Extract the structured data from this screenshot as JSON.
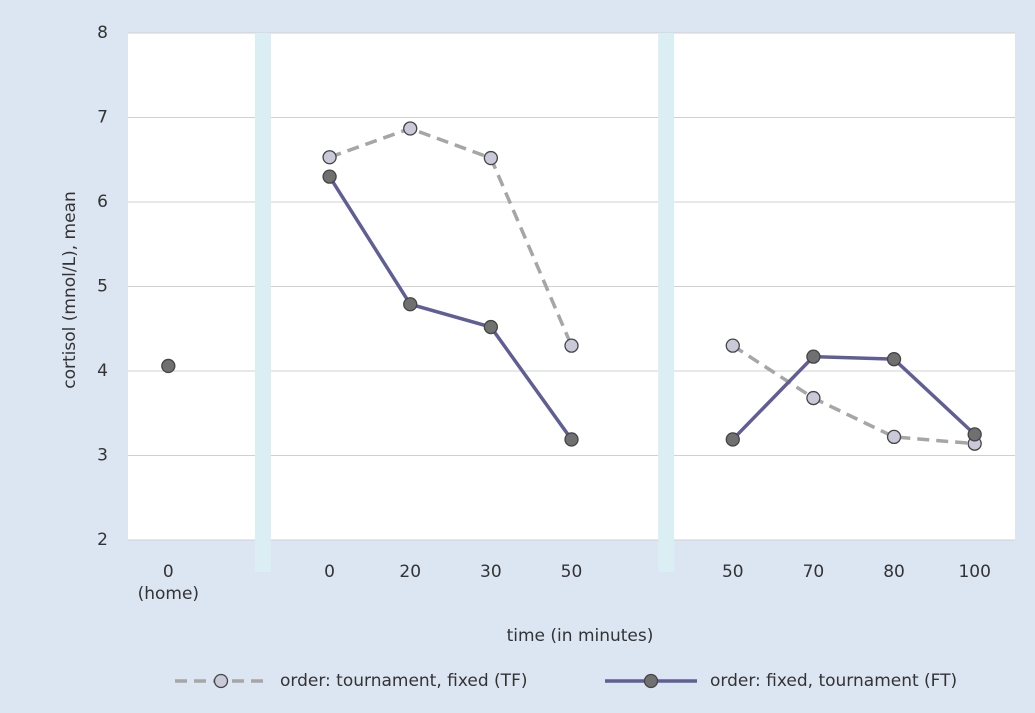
{
  "chart_data": {
    "type": "line",
    "categories": [
      "0\n(home)",
      null,
      "0",
      "20",
      "30",
      "50",
      null,
      "50",
      "70",
      "80",
      "100"
    ],
    "series": [
      {
        "name": "order: tournament, fixed (TF)",
        "color": "#a6a6a6",
        "marker_color": "#c9c9d9",
        "dashed": true,
        "values": [
          null,
          null,
          6.53,
          6.87,
          6.52,
          4.3,
          null,
          4.3,
          3.68,
          3.22,
          3.14
        ]
      },
      {
        "name": "order: fixed, tournament (FT)",
        "color": "#5f5f95",
        "marker_color": "#707070",
        "dashed": false,
        "values": [
          4.06,
          null,
          6.3,
          4.79,
          4.52,
          3.19,
          null,
          3.19,
          4.17,
          4.14,
          3.25
        ]
      }
    ],
    "x_label": "time (in minutes)",
    "y_label": "cortisol (mnol/L), mean",
    "ylim": [
      2,
      8
    ],
    "yticks": [
      2,
      3,
      4,
      5,
      6,
      7,
      8
    ],
    "grid": true,
    "legend": "bottom"
  }
}
